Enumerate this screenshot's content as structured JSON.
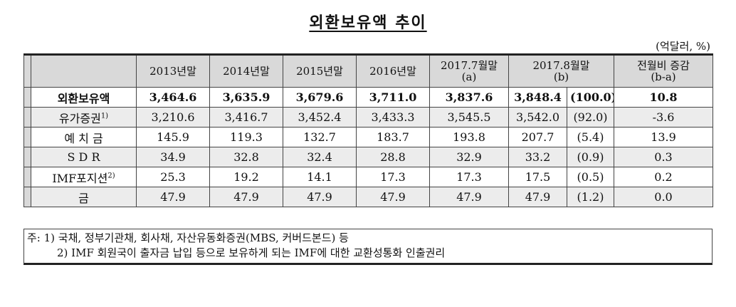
{
  "title": "외환보유액 추이",
  "unit": "(억달러, %)",
  "header": {
    "col1": "2013년말",
    "col2": "2014년말",
    "col3": "2015년말",
    "col4": "2016년말",
    "col5_line1": "2017.7월말",
    "col5_line2": "(a)",
    "col6_line1": "2017.8월말",
    "col6_line2": "(b)",
    "col7_line1": "전월비 증감",
    "col7_line2": "(b-a)"
  },
  "rows": [
    {
      "label": "외환보유액",
      "sup": "",
      "values": [
        "3,464.6",
        "3,635.9",
        "3,679.6",
        "3,711.0",
        "3,837.6",
        "3,848.4"
      ],
      "share": "(100.0)",
      "change": "10.8"
    },
    {
      "label": "유가증권",
      "sup": "1)",
      "values": [
        "3,210.6",
        "3,416.7",
        "3,452.4",
        "3,433.3",
        "3,545.5",
        "3,542.0"
      ],
      "share": "(92.0)",
      "change": "-3.6"
    },
    {
      "label": "예 치 금",
      "sup": "",
      "values": [
        "145.9",
        "119.3",
        "132.7",
        "183.7",
        "193.8",
        "207.7"
      ],
      "share": "(5.4)",
      "change": "13.9"
    },
    {
      "label": "S D R",
      "sup": "",
      "values": [
        "34.9",
        "32.8",
        "32.4",
        "28.8",
        "32.9",
        "33.2"
      ],
      "share": "(0.9)",
      "change": "0.3"
    },
    {
      "label": "IMF포지션",
      "sup": "2)",
      "values": [
        "25.3",
        "19.2",
        "14.1",
        "17.3",
        "17.3",
        "17.5"
      ],
      "share": "(0.5)",
      "change": "0.2"
    },
    {
      "label": "금",
      "sup": "",
      "values": [
        "47.9",
        "47.9",
        "47.9",
        "47.9",
        "47.9",
        "47.9"
      ],
      "share": "(1.2)",
      "change": "0.0"
    }
  ],
  "notes": {
    "line1": "주: 1) 국채, 정부기관채, 회사채, 자산유동화증권(MBS, 커버드본드) 등",
    "line2": "2) IMF 회원국이 출자금 납입 등으로 보유하게 되는 IMF에 대한 교환성통화 인출권리"
  }
}
